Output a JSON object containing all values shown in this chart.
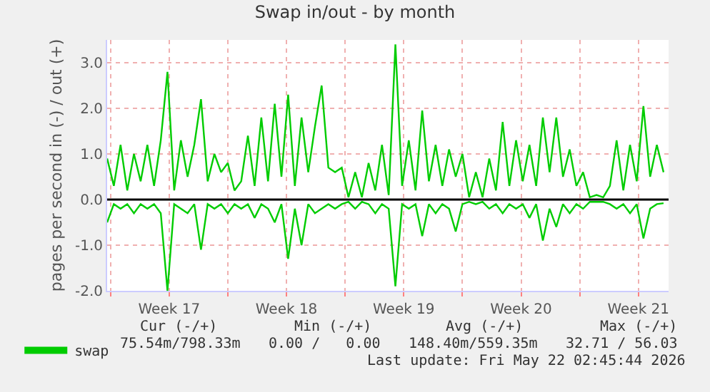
{
  "chart_data": {
    "type": "line",
    "title": "Swap in/out - by month",
    "ylabel": "pages per second in (-) / out (+)",
    "x": [
      "2026-04-18T19:12",
      "2026-04-19T04:48",
      "2026-04-19T14:24",
      "2026-04-20T00:00",
      "2026-04-20T09:36",
      "2026-04-20T19:12",
      "2026-04-21T04:48",
      "2026-04-21T14:24",
      "2026-04-22T00:00",
      "2026-04-22T09:36",
      "2026-04-22T19:12",
      "2026-04-23T04:48",
      "2026-04-23T14:24",
      "2026-04-24T00:00",
      "2026-04-24T09:36",
      "2026-04-24T19:12",
      "2026-04-25T04:48",
      "2026-04-25T14:24",
      "2026-04-26T00:00",
      "2026-04-26T09:36",
      "2026-04-26T19:12",
      "2026-04-27T04:48",
      "2026-04-27T14:24",
      "2026-04-28T00:00",
      "2026-04-28T09:36",
      "2026-04-28T19:12",
      "2026-04-29T04:48",
      "2026-04-29T14:24",
      "2026-04-30T00:00",
      "2026-04-30T09:36",
      "2026-04-30T19:12",
      "2026-05-01T04:48",
      "2026-05-01T14:24",
      "2026-05-02T00:00",
      "2026-05-02T09:36",
      "2026-05-02T19:12",
      "2026-05-03T04:48",
      "2026-05-03T14:24",
      "2026-05-04T00:00",
      "2026-05-04T09:36",
      "2026-05-04T19:12",
      "2026-05-05T04:48",
      "2026-05-05T14:24",
      "2026-05-06T00:00",
      "2026-05-06T09:36",
      "2026-05-06T19:12",
      "2026-05-07T04:48",
      "2026-05-07T14:24",
      "2026-05-08T00:00",
      "2026-05-08T09:36",
      "2026-05-08T19:12",
      "2026-05-09T04:48",
      "2026-05-09T14:24",
      "2026-05-10T00:00",
      "2026-05-10T09:36",
      "2026-05-10T19:12",
      "2026-05-11T04:48",
      "2026-05-11T14:24",
      "2026-05-12T00:00",
      "2026-05-12T09:36",
      "2026-05-12T19:12",
      "2026-05-13T04:48",
      "2026-05-13T14:24",
      "2026-05-14T00:00",
      "2026-05-14T09:36",
      "2026-05-14T19:12",
      "2026-05-15T04:48",
      "2026-05-15T14:24",
      "2026-05-16T00:00",
      "2026-05-16T09:36",
      "2026-05-16T19:12",
      "2026-05-17T04:48",
      "2026-05-17T14:24",
      "2026-05-18T00:00",
      "2026-05-18T09:36",
      "2026-05-18T19:12",
      "2026-05-19T04:48",
      "2026-05-19T14:24",
      "2026-05-20T00:00",
      "2026-05-20T09:36",
      "2026-05-20T19:12",
      "2026-05-21T04:48",
      "2026-05-21T14:24",
      "2026-05-22T00:00"
    ],
    "series": [
      {
        "name": "swap",
        "color": "#00cc00",
        "values": [
          0.9,
          0.3,
          1.2,
          0.2,
          1.0,
          0.4,
          1.2,
          0.3,
          1.3,
          2.8,
          0.2,
          1.3,
          0.5,
          1.2,
          2.2,
          0.4,
          1.0,
          0.6,
          0.8,
          0.2,
          0.4,
          1.4,
          0.3,
          1.8,
          0.4,
          2.1,
          0.5,
          2.3,
          0.3,
          1.8,
          0.6,
          1.6,
          2.5,
          0.7,
          0.6,
          0.7,
          0.05,
          0.6,
          0.05,
          0.8,
          0.2,
          1.2,
          0.1,
          3.4,
          0.3,
          1.3,
          0.2,
          1.95,
          0.4,
          1.2,
          0.3,
          1.1,
          0.5,
          1.0,
          0.05,
          0.6,
          0.05,
          0.9,
          0.2,
          1.7,
          0.3,
          1.3,
          0.4,
          1.2,
          0.3,
          1.8,
          0.6,
          1.8,
          0.5,
          1.1,
          0.3,
          0.6,
          0.05,
          0.1,
          0.05,
          0.3,
          1.3,
          0.2,
          1.2,
          0.4,
          2.05,
          0.5,
          1.2,
          0.6
        ]
      },
      {
        "color": "#00cc00",
        "values": [
          -0.5,
          -0.1,
          -0.2,
          -0.1,
          -0.3,
          -0.1,
          -0.2,
          -0.1,
          -0.3,
          -2.0,
          -0.1,
          -0.2,
          -0.3,
          -0.1,
          -1.1,
          -0.1,
          -0.2,
          -0.1,
          -0.3,
          -0.1,
          -0.2,
          -0.1,
          -0.4,
          -0.1,
          -0.2,
          -0.5,
          -0.1,
          -1.3,
          -0.2,
          -1.0,
          -0.1,
          -0.3,
          -0.2,
          -0.1,
          -0.2,
          -0.1,
          -0.05,
          -0.2,
          -0.05,
          -0.1,
          -0.3,
          -0.1,
          -0.2,
          -1.9,
          -0.1,
          -0.2,
          -0.1,
          -0.8,
          -0.1,
          -0.3,
          -0.1,
          -0.2,
          -0.7,
          -0.1,
          -0.05,
          -0.1,
          -0.05,
          -0.2,
          -0.1,
          -0.3,
          -0.1,
          -0.2,
          -0.1,
          -0.4,
          -0.1,
          -0.9,
          -0.2,
          -0.6,
          -0.1,
          -0.3,
          -0.1,
          -0.2,
          -0.05,
          -0.05,
          -0.05,
          -0.1,
          -0.2,
          -0.1,
          -0.3,
          -0.1,
          -0.85,
          -0.2,
          -0.1,
          -0.08
        ]
      }
    ],
    "xlim": [
      "2026-04-18T19:12",
      "2026-05-22T07:12"
    ],
    "xticks": [
      {
        "value": "2026-04-19",
        "label": null
      },
      {
        "value": "2026-04-22T12:00",
        "label": "Week 17"
      },
      {
        "value": "2026-04-26",
        "label": null
      },
      {
        "value": "2026-04-29T12:00",
        "label": "Week 18"
      },
      {
        "value": "2026-05-03",
        "label": null
      },
      {
        "value": "2026-05-06T12:00",
        "label": "Week 19"
      },
      {
        "value": "2026-05-10",
        "label": null
      },
      {
        "value": "2026-05-13T12:00",
        "label": "Week 20"
      },
      {
        "value": "2026-05-17",
        "label": null
      },
      {
        "value": "2026-05-20T12:00",
        "label": "Week 21"
      }
    ],
    "ylim": [
      -2.0,
      3.5
    ],
    "yticks": [
      {
        "value": -2,
        "label": "-2.0"
      },
      {
        "value": -1,
        "label": "-1.0"
      },
      {
        "value": 0,
        "label": "0.0"
      },
      {
        "value": 1,
        "label": "1.0"
      },
      {
        "value": 2,
        "label": "2.0"
      },
      {
        "value": 3,
        "label": "3.0"
      }
    ],
    "ref_lines": [
      {
        "axis": "y",
        "value": 0,
        "color": "#000000"
      }
    ],
    "grid": true,
    "legend": "bottom left",
    "marker": "none",
    "line_style": "solid",
    "annotations": [
      "Cur (-/+)",
      "Min (-/+)",
      "Avg (-/+)",
      "Max (-/+)",
      "75.54m/798.33m",
      "0.00 /   0.00",
      "148.40m/559.35m",
      "32.71 / 56.03",
      "Last update: Fri May 22 02:45:44 2026"
    ]
  }
}
